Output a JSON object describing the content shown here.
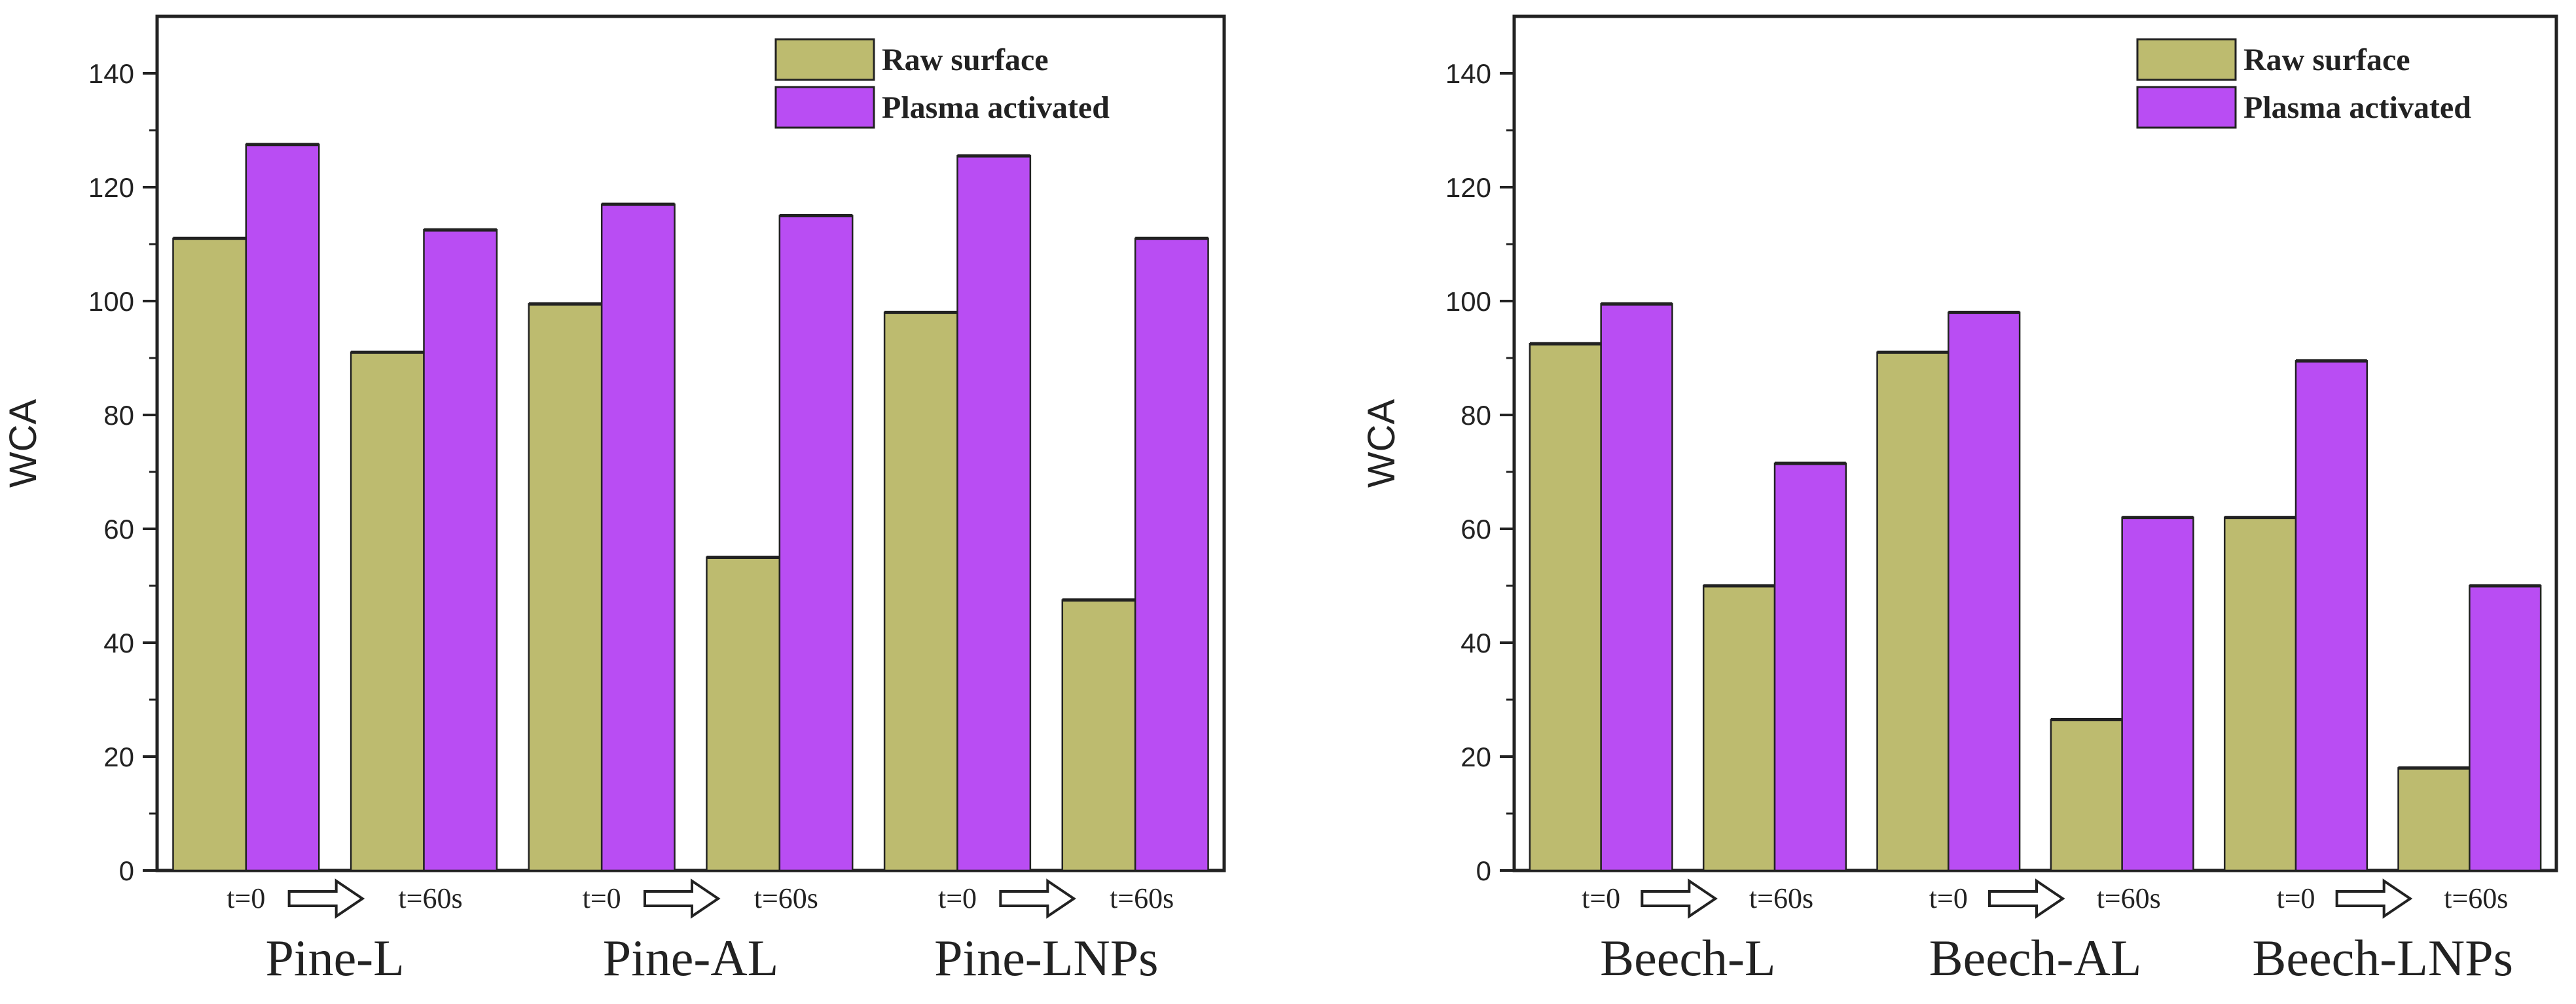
{
  "colors": {
    "raw": "#BDBB6F",
    "plasma": "#B94DF3",
    "axis": "#222222"
  },
  "chart_data": [
    {
      "type": "bar",
      "ylabel": "WCA",
      "ylim": [
        0,
        150
      ],
      "yticks": [
        0,
        20,
        40,
        60,
        80,
        100,
        120,
        140
      ],
      "legend": {
        "placement": "top-right",
        "entries": [
          "Raw surface",
          "Plasma activated"
        ]
      },
      "time_labels": [
        "t=0",
        "t=60s"
      ],
      "groups": [
        "Pine-L",
        "Pine-AL",
        "Pine-LNPs"
      ],
      "categories": [
        "Pine-L t=0",
        "Pine-L t=60s",
        "Pine-AL t=0",
        "Pine-AL t=60s",
        "Pine-LNPs t=0",
        "Pine-LNPs t=60s"
      ],
      "series": [
        {
          "name": "Raw surface",
          "values": [
            111,
            91,
            99.5,
            55,
            98,
            47.5
          ]
        },
        {
          "name": "Plasma activated",
          "values": [
            127.5,
            112.5,
            117,
            115,
            125.5,
            111
          ]
        }
      ]
    },
    {
      "type": "bar",
      "ylabel": "WCA",
      "ylim": [
        0,
        150
      ],
      "yticks": [
        0,
        20,
        40,
        60,
        80,
        100,
        120,
        140
      ],
      "legend": {
        "placement": "top-right",
        "entries": [
          "Raw surface",
          "Plasma activated"
        ]
      },
      "time_labels": [
        "t=0",
        "t=60s"
      ],
      "groups": [
        "Beech-L",
        "Beech-AL",
        "Beech-LNPs"
      ],
      "categories": [
        "Beech-L t=0",
        "Beech-L t=60s",
        "Beech-AL t=0",
        "Beech-AL t=60s",
        "Beech-LNPs t=0",
        "Beech-LNPs t=60s"
      ],
      "series": [
        {
          "name": "Raw surface",
          "values": [
            92.5,
            50,
            91,
            26.5,
            62,
            18
          ]
        },
        {
          "name": "Plasma activated",
          "values": [
            99.5,
            71.5,
            98,
            62,
            89.5,
            50
          ]
        }
      ]
    }
  ]
}
